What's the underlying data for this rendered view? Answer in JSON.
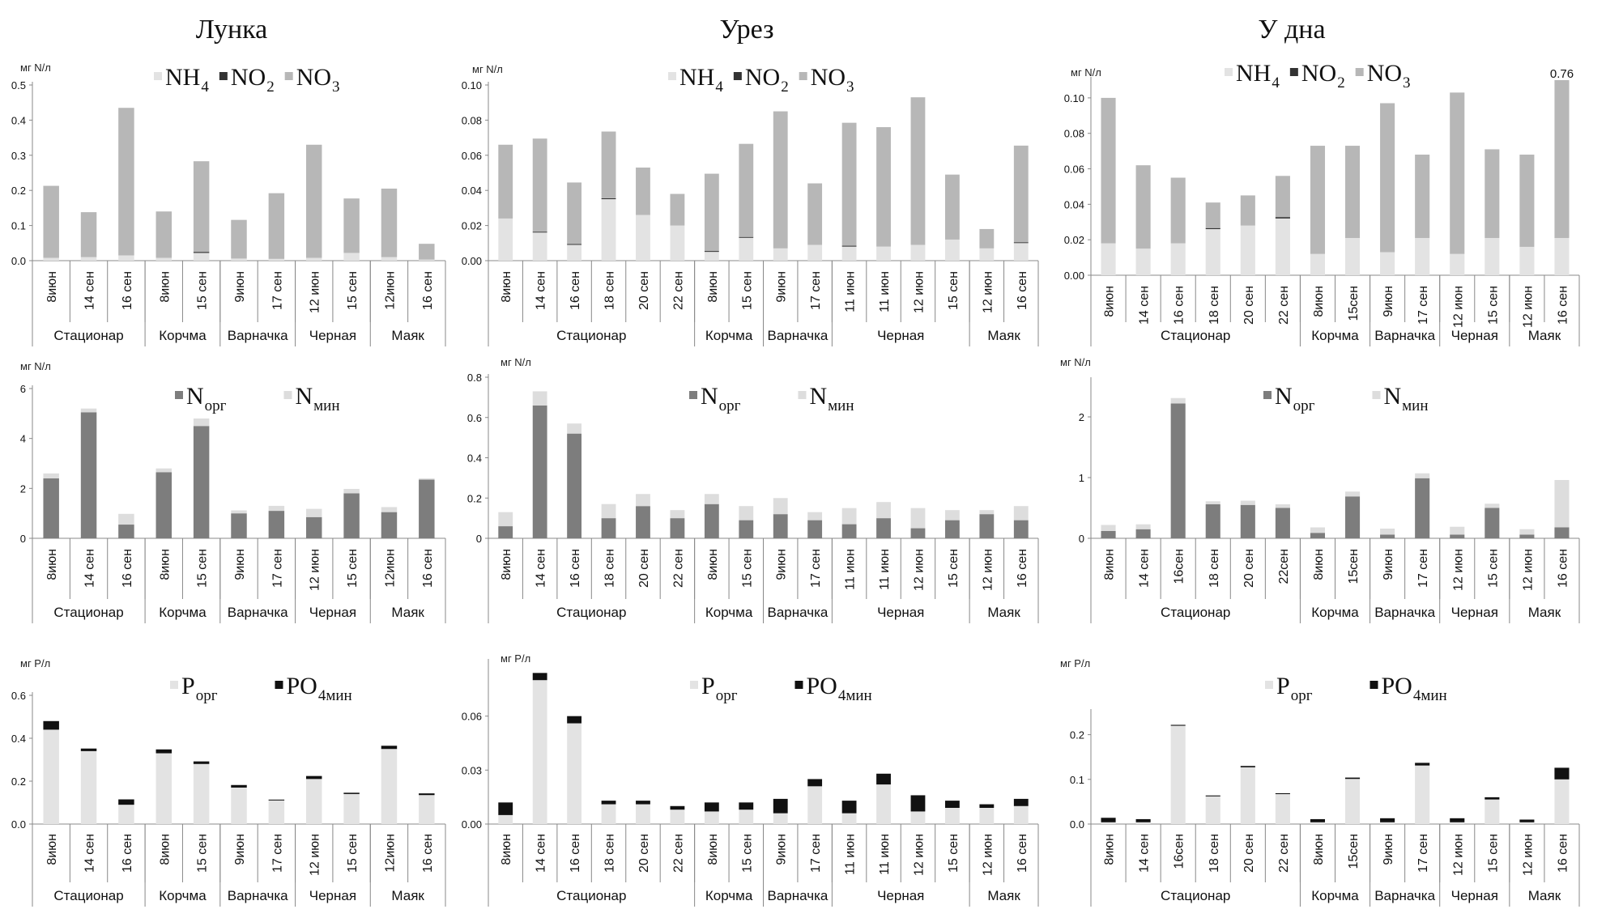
{
  "column_titles": [
    "Лунка",
    "Урез",
    "У дна"
  ],
  "colors": {
    "nh4": "#e3e3e3",
    "no2": "#333333",
    "no3": "#b7b7b7",
    "norg": "#7d7d7d",
    "nmin": "#dddddd",
    "porg": "#e3e3e3",
    "po4": "#111111"
  },
  "chart_data": [
    {
      "id": "c11",
      "type": "stacked-bar",
      "title": "Лунка",
      "ylabel": "мг N/л",
      "ylim": [
        0,
        0.5
      ],
      "yticks": [
        "0.0",
        "0.1",
        "0.2",
        "0.3",
        "0.4",
        "0.5"
      ],
      "categories": [
        "8июн",
        "14 сен",
        "16 сен",
        "8июн",
        "15 сен",
        "9июн",
        "17 сен",
        "12 июн",
        "15 сен",
        "12июн",
        "16 сен"
      ],
      "groups": [
        {
          "name": "Стационар",
          "count": 3
        },
        {
          "name": "Корчма",
          "count": 2
        },
        {
          "name": "Варначка",
          "count": 2
        },
        {
          "name": "Черная",
          "count": 2
        },
        {
          "name": "Маяк",
          "count": 2
        }
      ],
      "legend": [
        {
          "main": "NH",
          "sub": "4",
          "key": "nh4"
        },
        {
          "main": "NO",
          "sub": "2",
          "key": "no2"
        },
        {
          "main": "NO",
          "sub": "3",
          "key": "no3"
        }
      ],
      "series": [
        {
          "name": "NH4",
          "key": "nh4",
          "values": [
            0.008,
            0.01,
            0.015,
            0.008,
            0.022,
            0.006,
            0.005,
            0.008,
            0.022,
            0.01,
            0.003
          ]
        },
        {
          "name": "NO2",
          "key": "no2",
          "values": [
            0,
            0,
            0,
            0,
            0.003,
            0,
            0,
            0,
            0,
            0,
            0
          ]
        },
        {
          "name": "NO3",
          "key": "no3",
          "values": [
            0.205,
            0.128,
            0.42,
            0.132,
            0.258,
            0.11,
            0.187,
            0.322,
            0.155,
            0.195,
            0.045
          ]
        }
      ]
    },
    {
      "id": "c12",
      "type": "stacked-bar",
      "title": "Урез",
      "ylabel": "мг N/л",
      "ylim": [
        0,
        0.1
      ],
      "yticks": [
        "0.00",
        "0.02",
        "0.04",
        "0.06",
        "0.08",
        "0.10"
      ],
      "categories": [
        "8июн",
        "14 сен",
        "16 сен",
        "18 сен",
        "20 сен",
        "22 сен",
        "8июн",
        "15 сен",
        "9июн",
        "17 сен",
        "11 июн",
        "11 июн",
        "12 июн",
        "15 сен",
        "12 июн",
        "16 сен"
      ],
      "groups": [
        {
          "name": "Стационар",
          "count": 6
        },
        {
          "name": "Корчма",
          "count": 2
        },
        {
          "name": "Варначка",
          "count": 2
        },
        {
          "name": "Черная",
          "count": 4
        },
        {
          "name": "Маяк",
          "count": 2
        }
      ],
      "legend": [
        {
          "main": "NH",
          "sub": "4",
          "key": "nh4"
        },
        {
          "main": "NO",
          "sub": "2",
          "key": "no2"
        },
        {
          "main": "NO",
          "sub": "3",
          "key": "no3"
        }
      ],
      "series": [
        {
          "name": "NH4",
          "key": "nh4",
          "values": [
            0.024,
            0.016,
            0.009,
            0.035,
            0.026,
            0.02,
            0.005,
            0.013,
            0.007,
            0.009,
            0.008,
            0.008,
            0.009,
            0.012,
            0.007,
            0.01
          ]
        },
        {
          "name": "NO2",
          "key": "no2",
          "values": [
            0,
            0.0005,
            0.0005,
            0.0005,
            0,
            0,
            0.0005,
            0.0005,
            0,
            0,
            0.0005,
            0,
            0,
            0,
            0,
            0.0005
          ]
        },
        {
          "name": "NO3",
          "key": "no3",
          "values": [
            0.042,
            0.053,
            0.035,
            0.038,
            0.027,
            0.018,
            0.044,
            0.053,
            0.078,
            0.035,
            0.07,
            0.068,
            0.084,
            0.037,
            0.011,
            0.055
          ]
        }
      ]
    },
    {
      "id": "c13",
      "type": "stacked-bar",
      "title": "У дна",
      "ylabel": "мг N/л",
      "ylim": [
        0,
        0.11
      ],
      "yticks": [
        "0.00",
        "0.02",
        "0.04",
        "0.06",
        "0.08",
        "0.10"
      ],
      "ytick_values": [
        0,
        0.02,
        0.04,
        0.06,
        0.08,
        0.1
      ],
      "categories": [
        "8июн",
        "14 сен",
        "16 сен",
        "18 сен",
        "20 сен",
        "22 сен",
        "8июн",
        "15сен",
        "9июн",
        "17 сен",
        "12 июн",
        "15 сен",
        "12 июн",
        "16 сен"
      ],
      "groups": [
        {
          "name": "Стационар",
          "count": 6
        },
        {
          "name": "Корчма",
          "count": 2
        },
        {
          "name": "Варначка",
          "count": 2
        },
        {
          "name": "Черная",
          "count": 2
        },
        {
          "name": "Маяк",
          "count": 2
        }
      ],
      "legend": [
        {
          "main": "NH",
          "sub": "4",
          "key": "nh4"
        },
        {
          "main": "NO",
          "sub": "2",
          "key": "no2"
        },
        {
          "main": "NO",
          "sub": "3",
          "key": "no3"
        }
      ],
      "annotation": {
        "text": "0.76",
        "index": 13
      },
      "series": [
        {
          "name": "NH4",
          "key": "nh4",
          "values": [
            0.018,
            0.015,
            0.018,
            0.026,
            0.028,
            0.032,
            0.012,
            0.021,
            0.013,
            0.021,
            0.012,
            0.021,
            0.016,
            0.021
          ]
        },
        {
          "name": "NO2",
          "key": "no2",
          "values": [
            0,
            0,
            0,
            0.0006,
            0,
            0.0008,
            0,
            0,
            0,
            0,
            0,
            0,
            0,
            0
          ]
        },
        {
          "name": "NO3",
          "key": "no3",
          "values": [
            0.082,
            0.047,
            0.037,
            0.0144,
            0.017,
            0.0232,
            0.061,
            0.052,
            0.084,
            0.047,
            0.091,
            0.05,
            0.052,
            0.089
          ]
        }
      ]
    },
    {
      "id": "c21",
      "type": "stacked-bar",
      "title": "",
      "ylabel": "мг N/л",
      "ylim": [
        0,
        6
      ],
      "yticks": [
        "0",
        "2",
        "4",
        "6"
      ],
      "categories": [
        "8июн",
        "14 сен",
        "16 сен",
        "8июн",
        "15 сен",
        "9июн",
        "17 сен",
        "12 июн",
        "15 сен",
        "12июн",
        "16 сен"
      ],
      "groups": [
        {
          "name": "Стационар",
          "count": 3
        },
        {
          "name": "Корчма",
          "count": 2
        },
        {
          "name": "Варначка",
          "count": 2
        },
        {
          "name": "Черная",
          "count": 2
        },
        {
          "name": "Маяк",
          "count": 2
        }
      ],
      "legend": [
        {
          "main": "N",
          "sub": "орг",
          "key": "norg"
        },
        {
          "main": "N",
          "sub": "мин",
          "key": "nmin"
        }
      ],
      "series": [
        {
          "name": "Nорг",
          "key": "norg",
          "values": [
            2.4,
            5.05,
            0.55,
            2.65,
            4.5,
            1.0,
            1.1,
            0.85,
            1.8,
            1.05,
            2.35
          ]
        },
        {
          "name": "Nмин",
          "key": "nmin",
          "values": [
            0.2,
            0.15,
            0.43,
            0.15,
            0.3,
            0.12,
            0.2,
            0.33,
            0.18,
            0.2,
            0.05
          ]
        }
      ]
    },
    {
      "id": "c22",
      "type": "stacked-bar",
      "title": "",
      "ylabel": "мг N/л",
      "ylim": [
        0,
        0.8
      ],
      "yticks": [
        "0",
        "0.2",
        "0.4",
        "0.6",
        "0.8"
      ],
      "categories": [
        "8июн",
        "14 сен",
        "16 сен",
        "18 сен",
        "20 сен",
        "22 сен",
        "8июн",
        "15 сен",
        "9июн",
        "17 сен",
        "11 июн",
        "11 июн",
        "12 июн",
        "15 сен",
        "12 июн",
        "16 сен"
      ],
      "groups": [
        {
          "name": "Стационар",
          "count": 6
        },
        {
          "name": "Корчма",
          "count": 2
        },
        {
          "name": "Варначка",
          "count": 2
        },
        {
          "name": "Черная",
          "count": 4
        },
        {
          "name": "Маяк",
          "count": 2
        }
      ],
      "legend": [
        {
          "main": "N",
          "sub": "орг",
          "key": "norg"
        },
        {
          "main": "N",
          "sub": "мин",
          "key": "nmin"
        }
      ],
      "series": [
        {
          "name": "Nорг",
          "key": "norg",
          "values": [
            0.06,
            0.66,
            0.52,
            0.1,
            0.16,
            0.1,
            0.17,
            0.09,
            0.12,
            0.09,
            0.07,
            0.1,
            0.05,
            0.09,
            0.12,
            0.09
          ]
        },
        {
          "name": "Nмин",
          "key": "nmin",
          "values": [
            0.07,
            0.07,
            0.05,
            0.07,
            0.06,
            0.04,
            0.05,
            0.07,
            0.08,
            0.04,
            0.08,
            0.08,
            0.1,
            0.05,
            0.02,
            0.07
          ]
        }
      ]
    },
    {
      "id": "c23",
      "type": "stacked-bar",
      "title": "",
      "ylabel": "мг N/л",
      "ylim": [
        0,
        2.6
      ],
      "yticks": [
        "0",
        "1",
        "2"
      ],
      "ytick_values": [
        0,
        1,
        2
      ],
      "categories": [
        "8июн",
        "14 сен",
        "16сен",
        "18 сен",
        "20 сен",
        "22сен",
        "8июн",
        "15сен",
        "9июн",
        "17 сен",
        "12 июн",
        "15 сен",
        "12 июн",
        "16 сен"
      ],
      "groups": [
        {
          "name": "Стационар",
          "count": 6
        },
        {
          "name": "Корчма",
          "count": 2
        },
        {
          "name": "Варначка",
          "count": 2
        },
        {
          "name": "Черная",
          "count": 2
        },
        {
          "name": "Маяк",
          "count": 2
        }
      ],
      "legend": [
        {
          "main": "N",
          "sub": "орг",
          "key": "norg"
        },
        {
          "main": "N",
          "sub": "мин",
          "key": "nmin"
        }
      ],
      "series": [
        {
          "name": "Nорг",
          "key": "norg",
          "values": [
            0.12,
            0.15,
            2.22,
            0.56,
            0.55,
            0.5,
            0.09,
            0.69,
            0.06,
            0.99,
            0.06,
            0.5,
            0.06,
            0.18
          ]
        },
        {
          "name": "Nмин",
          "key": "nmin",
          "values": [
            0.1,
            0.08,
            0.09,
            0.05,
            0.07,
            0.06,
            0.09,
            0.08,
            0.1,
            0.08,
            0.13,
            0.07,
            0.09,
            0.78
          ]
        }
      ]
    },
    {
      "id": "c31",
      "type": "stacked-bar",
      "title": "",
      "ylabel": "мг Р/л",
      "ylim": [
        0,
        0.6
      ],
      "yticks": [
        "0.0",
        "0.2",
        "0.4",
        "0.6"
      ],
      "categories": [
        "8июн",
        "14 сен",
        "16 сен",
        "8июн",
        "15 сен",
        "9июн",
        "17 сен",
        "12 июн",
        "15 сен",
        "12июн",
        "16 сен"
      ],
      "groups": [
        {
          "name": "Стационар",
          "count": 3
        },
        {
          "name": "Корчма",
          "count": 2
        },
        {
          "name": "Варначка",
          "count": 2
        },
        {
          "name": "Черная",
          "count": 2
        },
        {
          "name": "Маяк",
          "count": 2
        }
      ],
      "legend": [
        {
          "main": "P",
          "sub": "орг",
          "key": "porg"
        },
        {
          "main": "PO",
          "sub": "4мин",
          "key": "po4"
        }
      ],
      "series": [
        {
          "name": "Pорг",
          "key": "porg",
          "values": [
            0.44,
            0.34,
            0.09,
            0.33,
            0.28,
            0.17,
            0.11,
            0.21,
            0.14,
            0.35,
            0.135
          ]
        },
        {
          "name": "PO4мин",
          "key": "po4",
          "values": [
            0.04,
            0.012,
            0.025,
            0.018,
            0.012,
            0.012,
            0.004,
            0.014,
            0.006,
            0.015,
            0.008
          ]
        }
      ]
    },
    {
      "id": "c32",
      "type": "stacked-bar",
      "title": "",
      "ylabel": "мг Р/л",
      "ylim": [
        0,
        0.09
      ],
      "yticks": [
        "0.00",
        "0.03",
        "0.06"
      ],
      "ytick_values": [
        0,
        0.03,
        0.06
      ],
      "categories": [
        "8июн",
        "14 сен",
        "16 сен",
        "18 сен",
        "20 сен",
        "22 сен",
        "8июн",
        "15 сен",
        "9июн",
        "17 сен",
        "11 июн",
        "11 июн",
        "12 июн",
        "15 сен",
        "12 июн",
        "16 сен"
      ],
      "groups": [
        {
          "name": "Стационар",
          "count": 6
        },
        {
          "name": "Корчма",
          "count": 2
        },
        {
          "name": "Варначка",
          "count": 2
        },
        {
          "name": "Черная",
          "count": 4
        },
        {
          "name": "Маяк",
          "count": 2
        }
      ],
      "legend": [
        {
          "main": "P",
          "sub": "орг",
          "key": "porg"
        },
        {
          "main": "PO",
          "sub": "4мин",
          "key": "po4"
        }
      ],
      "series": [
        {
          "name": "Pорг",
          "key": "porg",
          "values": [
            0.005,
            0.08,
            0.056,
            0.011,
            0.011,
            0.008,
            0.007,
            0.008,
            0.006,
            0.021,
            0.006,
            0.022,
            0.007,
            0.009,
            0.009,
            0.01
          ]
        },
        {
          "name": "PO4мин",
          "key": "po4",
          "values": [
            0.007,
            0.004,
            0.004,
            0.002,
            0.002,
            0.002,
            0.005,
            0.004,
            0.008,
            0.004,
            0.007,
            0.006,
            0.009,
            0.004,
            0.002,
            0.004
          ]
        }
      ]
    },
    {
      "id": "c33",
      "type": "stacked-bar",
      "title": "",
      "ylabel": "мг Р/л",
      "ylim": [
        0,
        0.25
      ],
      "yticks": [
        "0.0",
        "0.1",
        "0.2"
      ],
      "ytick_values": [
        0,
        0.1,
        0.2
      ],
      "categories": [
        "8июн",
        "14 сен",
        "16сен",
        "18 сен",
        "20 сен",
        "22 сен",
        "8июн",
        "15сен",
        "9июн",
        "17 сен",
        "12 июн",
        "15 сен",
        "12 июн",
        "16 сен"
      ],
      "groups": [
        {
          "name": "Стационар",
          "count": 6
        },
        {
          "name": "Корчма",
          "count": 2
        },
        {
          "name": "Варначка",
          "count": 2
        },
        {
          "name": "Черная",
          "count": 2
        },
        {
          "name": "Маяк",
          "count": 2
        }
      ],
      "legend": [
        {
          "main": "P",
          "sub": "орг",
          "key": "porg"
        },
        {
          "main": "PO",
          "sub": "4мин",
          "key": "po4"
        }
      ],
      "series": [
        {
          "name": "Pорг",
          "key": "porg",
          "values": [
            0.004,
            0.004,
            0.22,
            0.062,
            0.127,
            0.067,
            0.004,
            0.101,
            0.004,
            0.131,
            0.004,
            0.055,
            0.004,
            0.1
          ]
        },
        {
          "name": "PO4мин",
          "key": "po4",
          "values": [
            0.01,
            0.007,
            0.002,
            0.002,
            0.003,
            0.002,
            0.007,
            0.003,
            0.009,
            0.006,
            0.009,
            0.005,
            0.006,
            0.026
          ]
        }
      ]
    }
  ]
}
